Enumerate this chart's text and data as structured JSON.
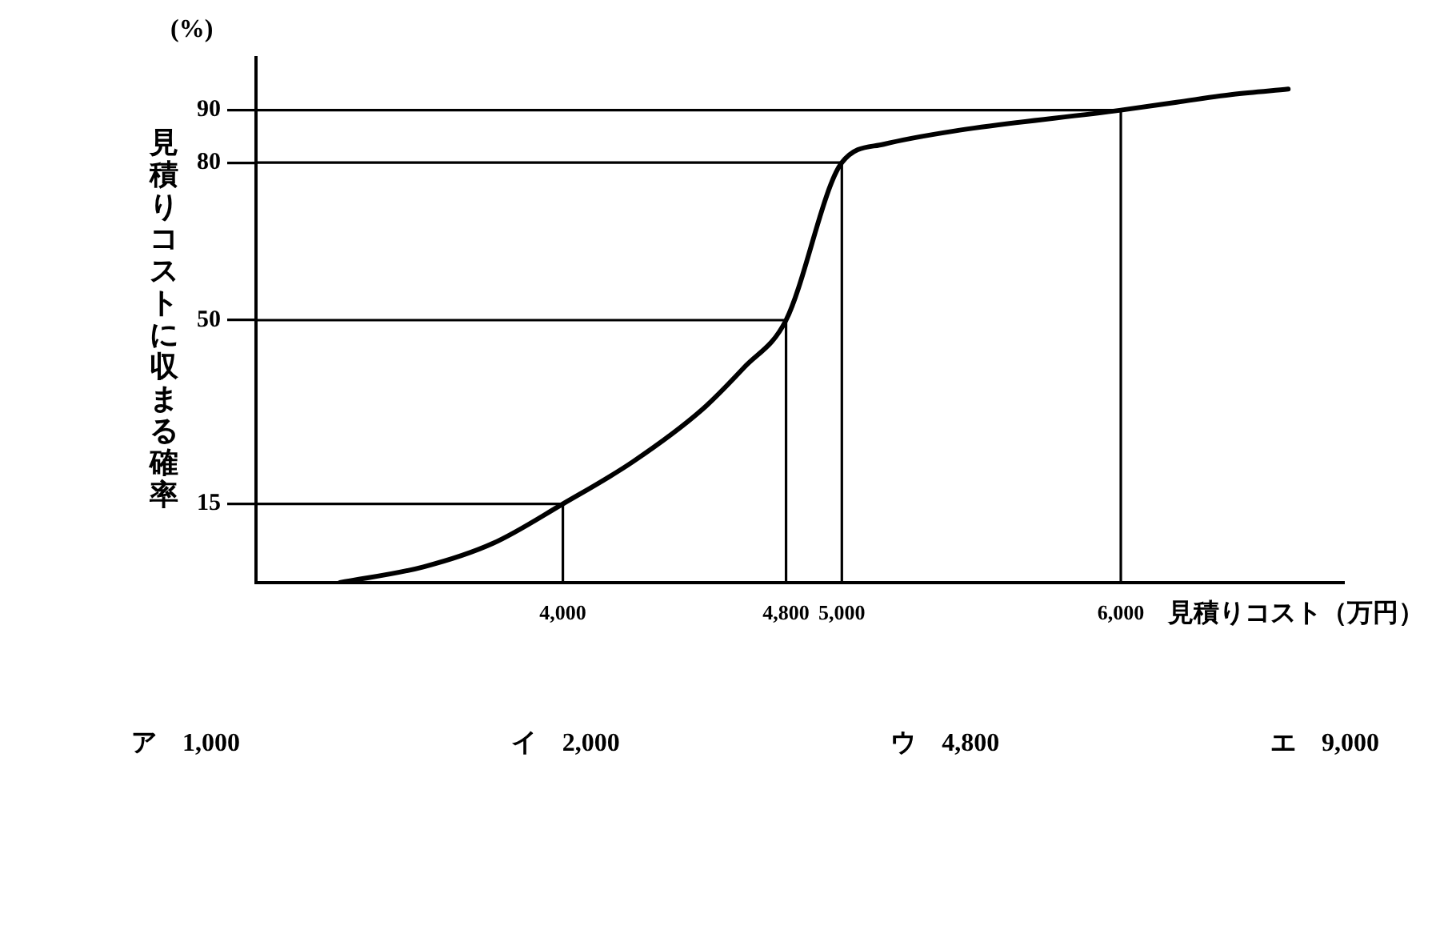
{
  "chart_data": {
    "type": "line",
    "x": [
      3200,
      3500,
      3750,
      4000,
      4250,
      4500,
      4650,
      4800,
      5000,
      5150,
      5400,
      6000,
      6200,
      6400,
      6600
    ],
    "series": [
      {
        "color": "#000000",
        "values": [
          0,
          3,
          7.5,
          15,
          23,
          33,
          41,
          50,
          80,
          83.5,
          86,
          90,
          91.5,
          93,
          94
        ]
      }
    ],
    "xlim": [
      2900,
      6800
    ],
    "xticks": [
      {
        "value": 4000,
        "label": "4,000"
      },
      {
        "value": 4800,
        "label": "4,800"
      },
      {
        "value": 5000,
        "label": "5,000"
      },
      {
        "value": 6000,
        "label": "6,000"
      }
    ],
    "ylim": [
      0,
      100
    ],
    "yticks": [
      15,
      50,
      80,
      90
    ],
    "xlabel": "見積りコスト（万円）",
    "ylabel": "見積りコストに収まる確率",
    "annotations": [
      "(%)",
      "ア　1,000",
      "イ　2,000",
      "ウ　4,800",
      "エ　9,000"
    ],
    "ref_lines": [
      {
        "axis": "y",
        "value": 15,
        "color": "#000000"
      },
      {
        "axis": "y",
        "value": 50,
        "color": "#000000"
      },
      {
        "axis": "y",
        "value": 80,
        "color": "#000000"
      },
      {
        "axis": "y",
        "value": 90,
        "color": "#000000"
      },
      {
        "axis": "x",
        "value": 4000,
        "color": "#000000"
      },
      {
        "axis": "x",
        "value": 4800,
        "color": "#000000"
      },
      {
        "axis": "x",
        "value": 5000,
        "color": "#000000"
      },
      {
        "axis": "x",
        "value": 6000,
        "color": "#000000"
      }
    ],
    "marker": "none"
  }
}
